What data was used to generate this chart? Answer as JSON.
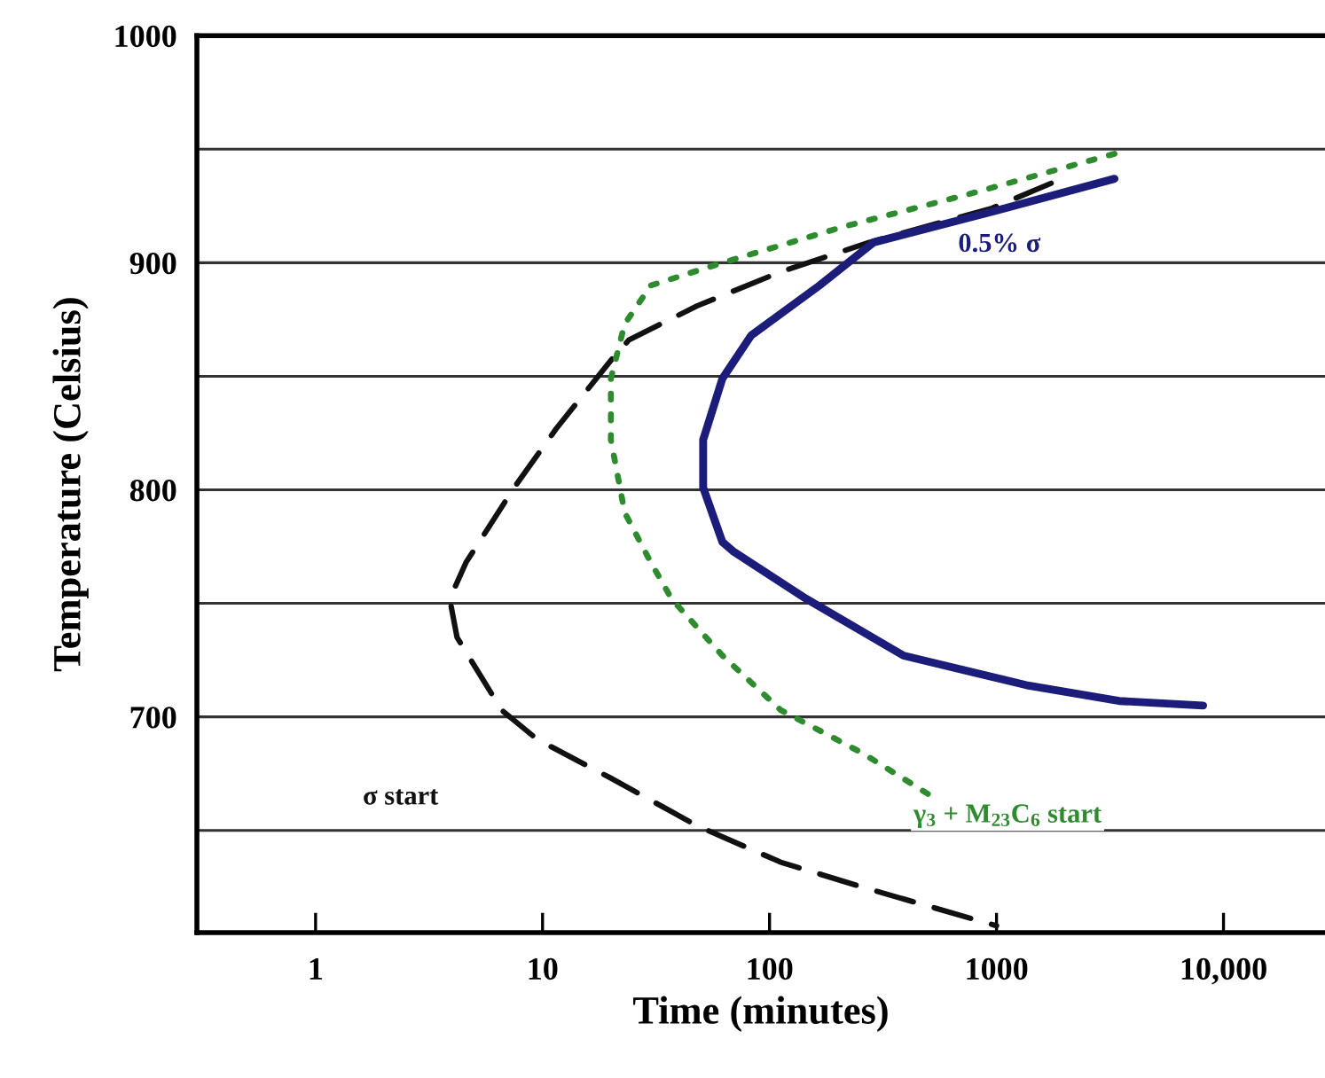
{
  "chart_data": {
    "type": "line",
    "xlabel": "Time (minutes)",
    "ylabel": "Temperature (Celsius)",
    "log": "x",
    "xlim": [
      0.3,
      28000
    ],
    "xticks": [
      1,
      10,
      100,
      1000,
      {
        "value": 10000,
        "label": "10,000"
      }
    ],
    "ylim": [
      605,
      1000
    ],
    "yticks": [
      {
        "value": 650,
        "label": null
      },
      700,
      {
        "value": 750,
        "label": null
      },
      800,
      {
        "value": 850,
        "label": null
      },
      900,
      {
        "value": 950,
        "label": null
      },
      1000
    ],
    "grid": "y",
    "legend": false,
    "marker": "none",
    "series": [
      {
        "name": "σ start",
        "color": "#111111",
        "line_style": "dashed",
        "x": [
          1740,
          955,
          275,
          112,
          48,
          24,
          20,
          11.5,
          7.5,
          4.6,
          3.9,
          4.2,
          6.6,
          9.5,
          20,
          48,
          112,
          257,
          1000
        ],
        "values": [
          935,
          924,
          909,
          896,
          881,
          866,
          857,
          827,
          801,
          768,
          752,
          735,
          703,
          690,
          673,
          652,
          636,
          625,
          608
        ]
      },
      {
        "name": "γ$_{3}$ + M$_{23}$C$_{6}$ start",
        "color": "#2e8b2e",
        "line_style": "dotted",
        "x": [
          3310,
          741,
          214,
          62,
          30,
          23,
          20,
          20,
          23,
          30,
          37,
          62,
          112,
          257,
          500
        ],
        "values": [
          948,
          930,
          916,
          900,
          890,
          873,
          849,
          822,
          790,
          768,
          752,
          727,
          703,
          684,
          666
        ]
      },
      {
        "name": "0.5% σ",
        "color": "#1c1c7a",
        "line_style": "solid",
        "x": [
          3310,
          1000,
          288,
          166,
          83,
          62,
          51,
          51,
          62,
          69,
          145,
          389,
          1350,
          3470,
          8130
        ],
        "values": [
          937,
          923,
          909,
          890,
          868,
          849,
          822,
          801,
          777,
          773,
          752,
          727,
          714,
          707,
          705
        ]
      }
    ]
  }
}
